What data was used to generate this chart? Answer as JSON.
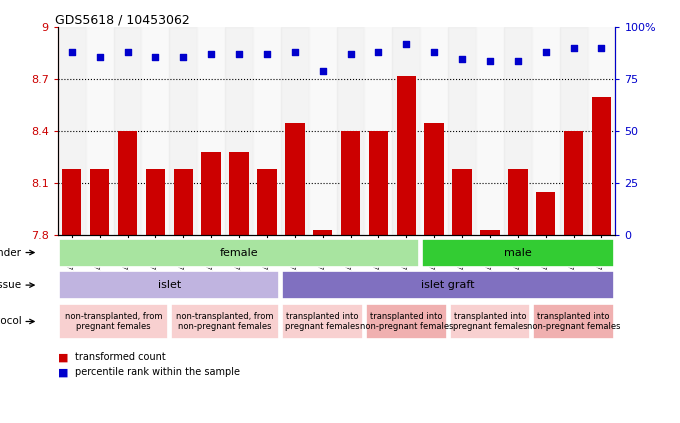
{
  "title": "GDS5618 / 10453062",
  "samples": [
    "GSM1429382",
    "GSM1429383",
    "GSM1429384",
    "GSM1429385",
    "GSM1429386",
    "GSM1429387",
    "GSM1429388",
    "GSM1429389",
    "GSM1429390",
    "GSM1429391",
    "GSM1429392",
    "GSM1429396",
    "GSM1429397",
    "GSM1429398",
    "GSM1429393",
    "GSM1429394",
    "GSM1429395",
    "GSM1429399",
    "GSM1429400",
    "GSM1429401"
  ],
  "red_values": [
    8.18,
    8.18,
    8.4,
    8.18,
    8.18,
    8.28,
    8.28,
    8.18,
    8.45,
    7.83,
    8.4,
    8.4,
    8.72,
    8.45,
    8.18,
    7.83,
    8.18,
    8.05,
    8.4,
    8.6
  ],
  "blue_values": [
    88,
    86,
    88,
    86,
    86,
    87,
    87,
    87,
    88,
    79,
    87,
    88,
    92,
    88,
    85,
    84,
    84,
    88,
    90,
    90
  ],
  "ylim_left": [
    7.8,
    9.0
  ],
  "ylim_right": [
    0,
    100
  ],
  "yticks_left": [
    7.8,
    8.1,
    8.4,
    8.7,
    9.0
  ],
  "yticks_right": [
    0,
    25,
    50,
    75,
    100
  ],
  "ytick_labels_left": [
    "7.8",
    "8.1",
    "8.4",
    "8.7",
    "9"
  ],
  "ytick_labels_right": [
    "0",
    "25",
    "50",
    "75",
    "100%"
  ],
  "hlines": [
    8.1,
    8.4,
    8.7
  ],
  "bar_color": "#cc0000",
  "dot_color": "#0000cc",
  "gender_groups": [
    {
      "label": "female",
      "start": 0,
      "end": 13,
      "color": "#a8e4a0"
    },
    {
      "label": "male",
      "start": 13,
      "end": 20,
      "color": "#33cc33"
    }
  ],
  "tissue_groups": [
    {
      "label": "islet",
      "start": 0,
      "end": 8,
      "color": "#c0b4e0"
    },
    {
      "label": "islet graft",
      "start": 8,
      "end": 20,
      "color": "#8070c0"
    }
  ],
  "protocol_groups": [
    {
      "label": "non-transplanted, from\npregnant females",
      "start": 0,
      "end": 4,
      "color": "#f8d0d0"
    },
    {
      "label": "non-transplanted, from\nnon-pregnant females",
      "start": 4,
      "end": 8,
      "color": "#f8d0d0"
    },
    {
      "label": "transplanted into\npregnant females",
      "start": 8,
      "end": 11,
      "color": "#f8d0d0"
    },
    {
      "label": "transplanted into\nnon-pregnant females",
      "start": 11,
      "end": 14,
      "color": "#f0b0b0"
    },
    {
      "label": "transplanted into\npregnant females",
      "start": 14,
      "end": 17,
      "color": "#f8d0d0"
    },
    {
      "label": "transplanted into\nnon-pregnant females",
      "start": 17,
      "end": 20,
      "color": "#f0b0b0"
    }
  ],
  "legend_items": [
    {
      "label": "transformed count",
      "color": "#cc0000"
    },
    {
      "label": "percentile rank within the sample",
      "color": "#0000cc"
    }
  ]
}
